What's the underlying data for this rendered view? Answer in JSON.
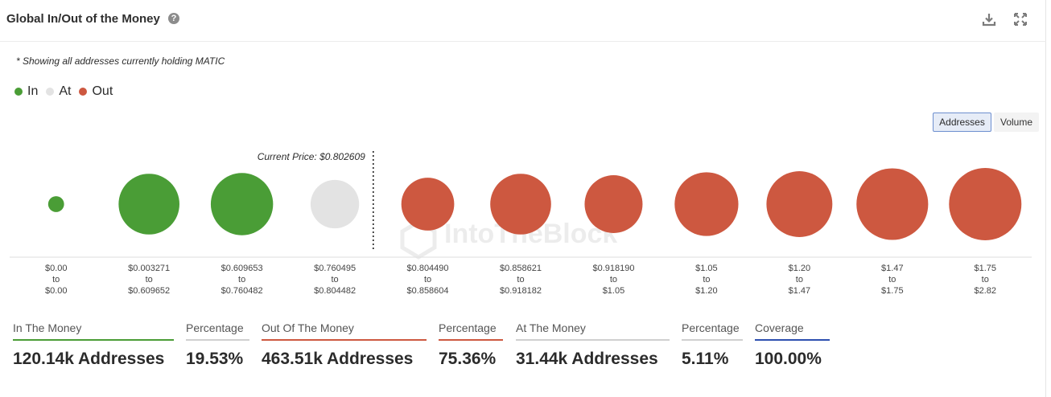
{
  "header": {
    "title": "Global In/Out of the Money",
    "help_icon": "question-circle-icon",
    "download_icon": "download-icon",
    "expand_icon": "expand-icon"
  },
  "note": "* Showing all addresses currently holding MATIC",
  "legend": [
    {
      "label": "In",
      "color": "#4a9d36"
    },
    {
      "label": "At",
      "color": "#e3e3e3"
    },
    {
      "label": "Out",
      "color": "#cd5840"
    }
  ],
  "toggle": {
    "addresses_label": "Addresses",
    "volume_label": "Volume",
    "selected": "Addresses"
  },
  "watermark": "IntoTheBlock",
  "chart_data": {
    "type": "bubble",
    "current_price_label": "Current Price: $0.802609",
    "current_price": 0.802609,
    "size_metric": "addresses",
    "categories": [
      {
        "from": "$0.00",
        "to": "$0.00",
        "status": "In",
        "size": 0.22
      },
      {
        "from": "$0.003271",
        "to": "$0.609652",
        "status": "In",
        "size": 0.84
      },
      {
        "from": "$0.609653",
        "to": "$0.760482",
        "status": "In",
        "size": 0.86
      },
      {
        "from": "$0.760495",
        "to": "$0.804482",
        "status": "At",
        "size": 0.67
      },
      {
        "from": "$0.804490",
        "to": "$0.858604",
        "status": "Out",
        "size": 0.73
      },
      {
        "from": "$0.858621",
        "to": "$0.918182",
        "status": "Out",
        "size": 0.84
      },
      {
        "from": "$0.918190",
        "to": "$1.05",
        "status": "Out",
        "size": 0.8
      },
      {
        "from": "$1.05",
        "to": "$1.20",
        "status": "Out",
        "size": 0.88
      },
      {
        "from": "$1.20",
        "to": "$1.47",
        "status": "Out",
        "size": 0.91
      },
      {
        "from": "$1.47",
        "to": "$1.75",
        "status": "Out",
        "size": 0.99
      },
      {
        "from": "$1.75",
        "to": "$2.82",
        "status": "Out",
        "size": 1.0
      }
    ],
    "to_word": "to",
    "current_price_after_index": 3
  },
  "stats": [
    {
      "label": "In The Money",
      "value": "120.14k Addresses",
      "color": "#4a9d36"
    },
    {
      "label": "Percentage",
      "value": "19.53%",
      "color": "#cfcfcf"
    },
    {
      "label": "Out Of The Money",
      "value": "463.51k Addresses",
      "color": "#cd5840"
    },
    {
      "label": "Percentage",
      "value": "75.36%",
      "color": "#cd5840"
    },
    {
      "label": "At The Money",
      "value": "31.44k Addresses",
      "color": "#cfcfcf"
    },
    {
      "label": "Percentage",
      "value": "5.11%",
      "color": "#cfcfcf"
    },
    {
      "label": "Coverage",
      "value": "100.00%",
      "color": "#2d4fb0"
    }
  ]
}
